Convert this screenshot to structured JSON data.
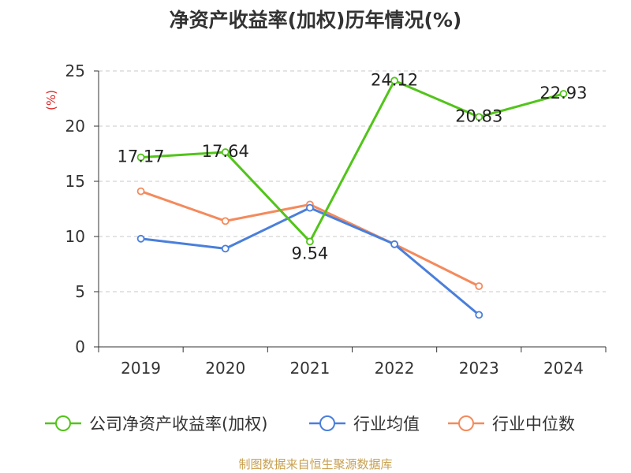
{
  "chart_data": {
    "type": "line",
    "title": "净资产收益率(加权)历年情况(%)",
    "ylabel": "(%)",
    "xlabel": "",
    "categories": [
      "2019",
      "2020",
      "2021",
      "2022",
      "2023",
      "2024"
    ],
    "ylim": [
      0,
      25
    ],
    "yticks": [
      0,
      5,
      10,
      15,
      20,
      25
    ],
    "grid": true,
    "legend_position": "bottom",
    "series": [
      {
        "name": "公司净资产收益率(加权)",
        "color": "#52c41a",
        "values": [
          17.17,
          17.64,
          9.54,
          24.12,
          20.83,
          22.93
        ],
        "labels": [
          "17.17",
          "17.64",
          "9.54",
          "24.12",
          "20.83",
          "22.93"
        ]
      },
      {
        "name": "行业均值",
        "color": "#4a7fdb",
        "values": [
          9.8,
          8.9,
          12.6,
          9.3,
          2.9,
          null
        ]
      },
      {
        "name": "行业中位数",
        "color": "#f48a5c",
        "values": [
          14.1,
          11.4,
          12.9,
          9.3,
          5.5,
          null
        ]
      }
    ]
  },
  "source_text": "制图数据来自恒生聚源数据库"
}
